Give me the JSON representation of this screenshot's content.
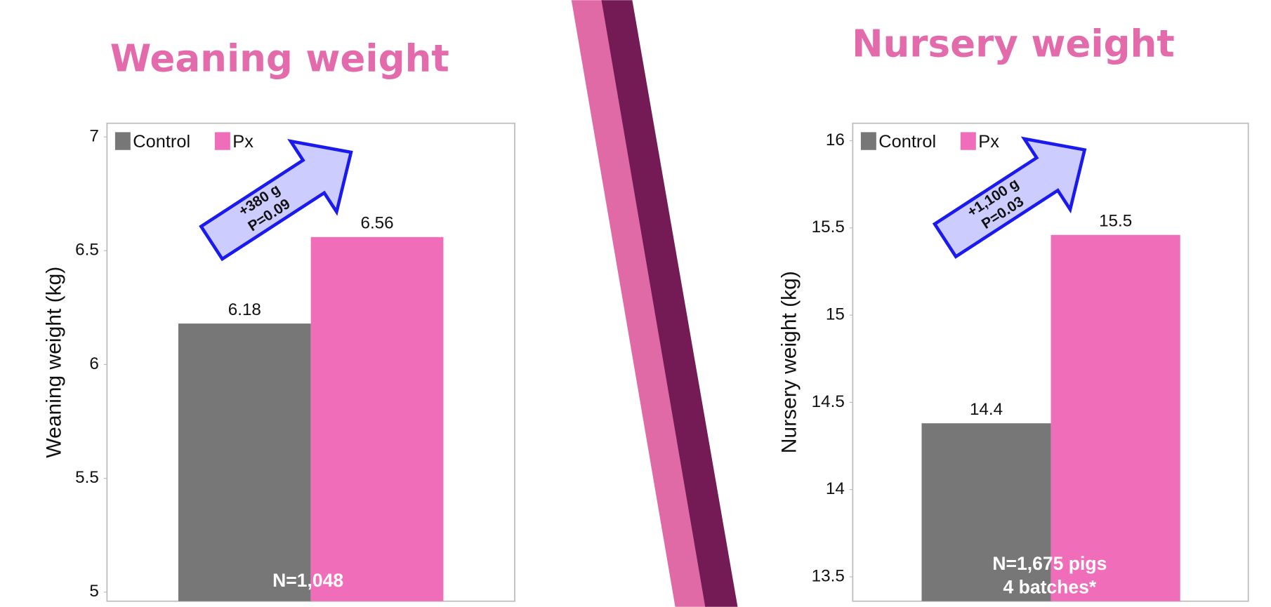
{
  "chart_data": [
    {
      "type": "bar",
      "title": "Weaning weight",
      "y_label": "Weaning weight (kg)",
      "series": [
        {
          "name": "Control",
          "color": "#777777",
          "values": [
            6.18
          ]
        },
        {
          "name": "Px",
          "color": "#f06eb9",
          "values": [
            6.56
          ]
        }
      ],
      "ylim": [
        4.96,
        7.06
      ],
      "yticks": [
        5,
        5.5,
        6,
        6.5,
        7
      ],
      "grid": false,
      "legend": "top-left",
      "arrow_text": [
        "+380 g",
        "P=0.09"
      ],
      "note": [
        "N=1,048"
      ]
    },
    {
      "type": "bar",
      "title": "Nursery weight",
      "y_label": "Nursery weight (kg)",
      "series": [
        {
          "name": "Control",
          "color": "#777777",
          "values": [
            14.38
          ],
          "value_labels": [
            "14.4"
          ]
        },
        {
          "name": "Px",
          "color": "#f06eb9",
          "values": [
            15.46
          ],
          "value_labels": [
            "15.5"
          ]
        }
      ],
      "ylim": [
        13.36,
        16.1
      ],
      "yticks": [
        13.5,
        14,
        14.5,
        15,
        15.5,
        16
      ],
      "grid": false,
      "legend": "top-left",
      "arrow_text": [
        "+1,100 g",
        "P=0.03"
      ],
      "note": [
        "N=1,675 pigs",
        "4 batches*"
      ]
    }
  ]
}
